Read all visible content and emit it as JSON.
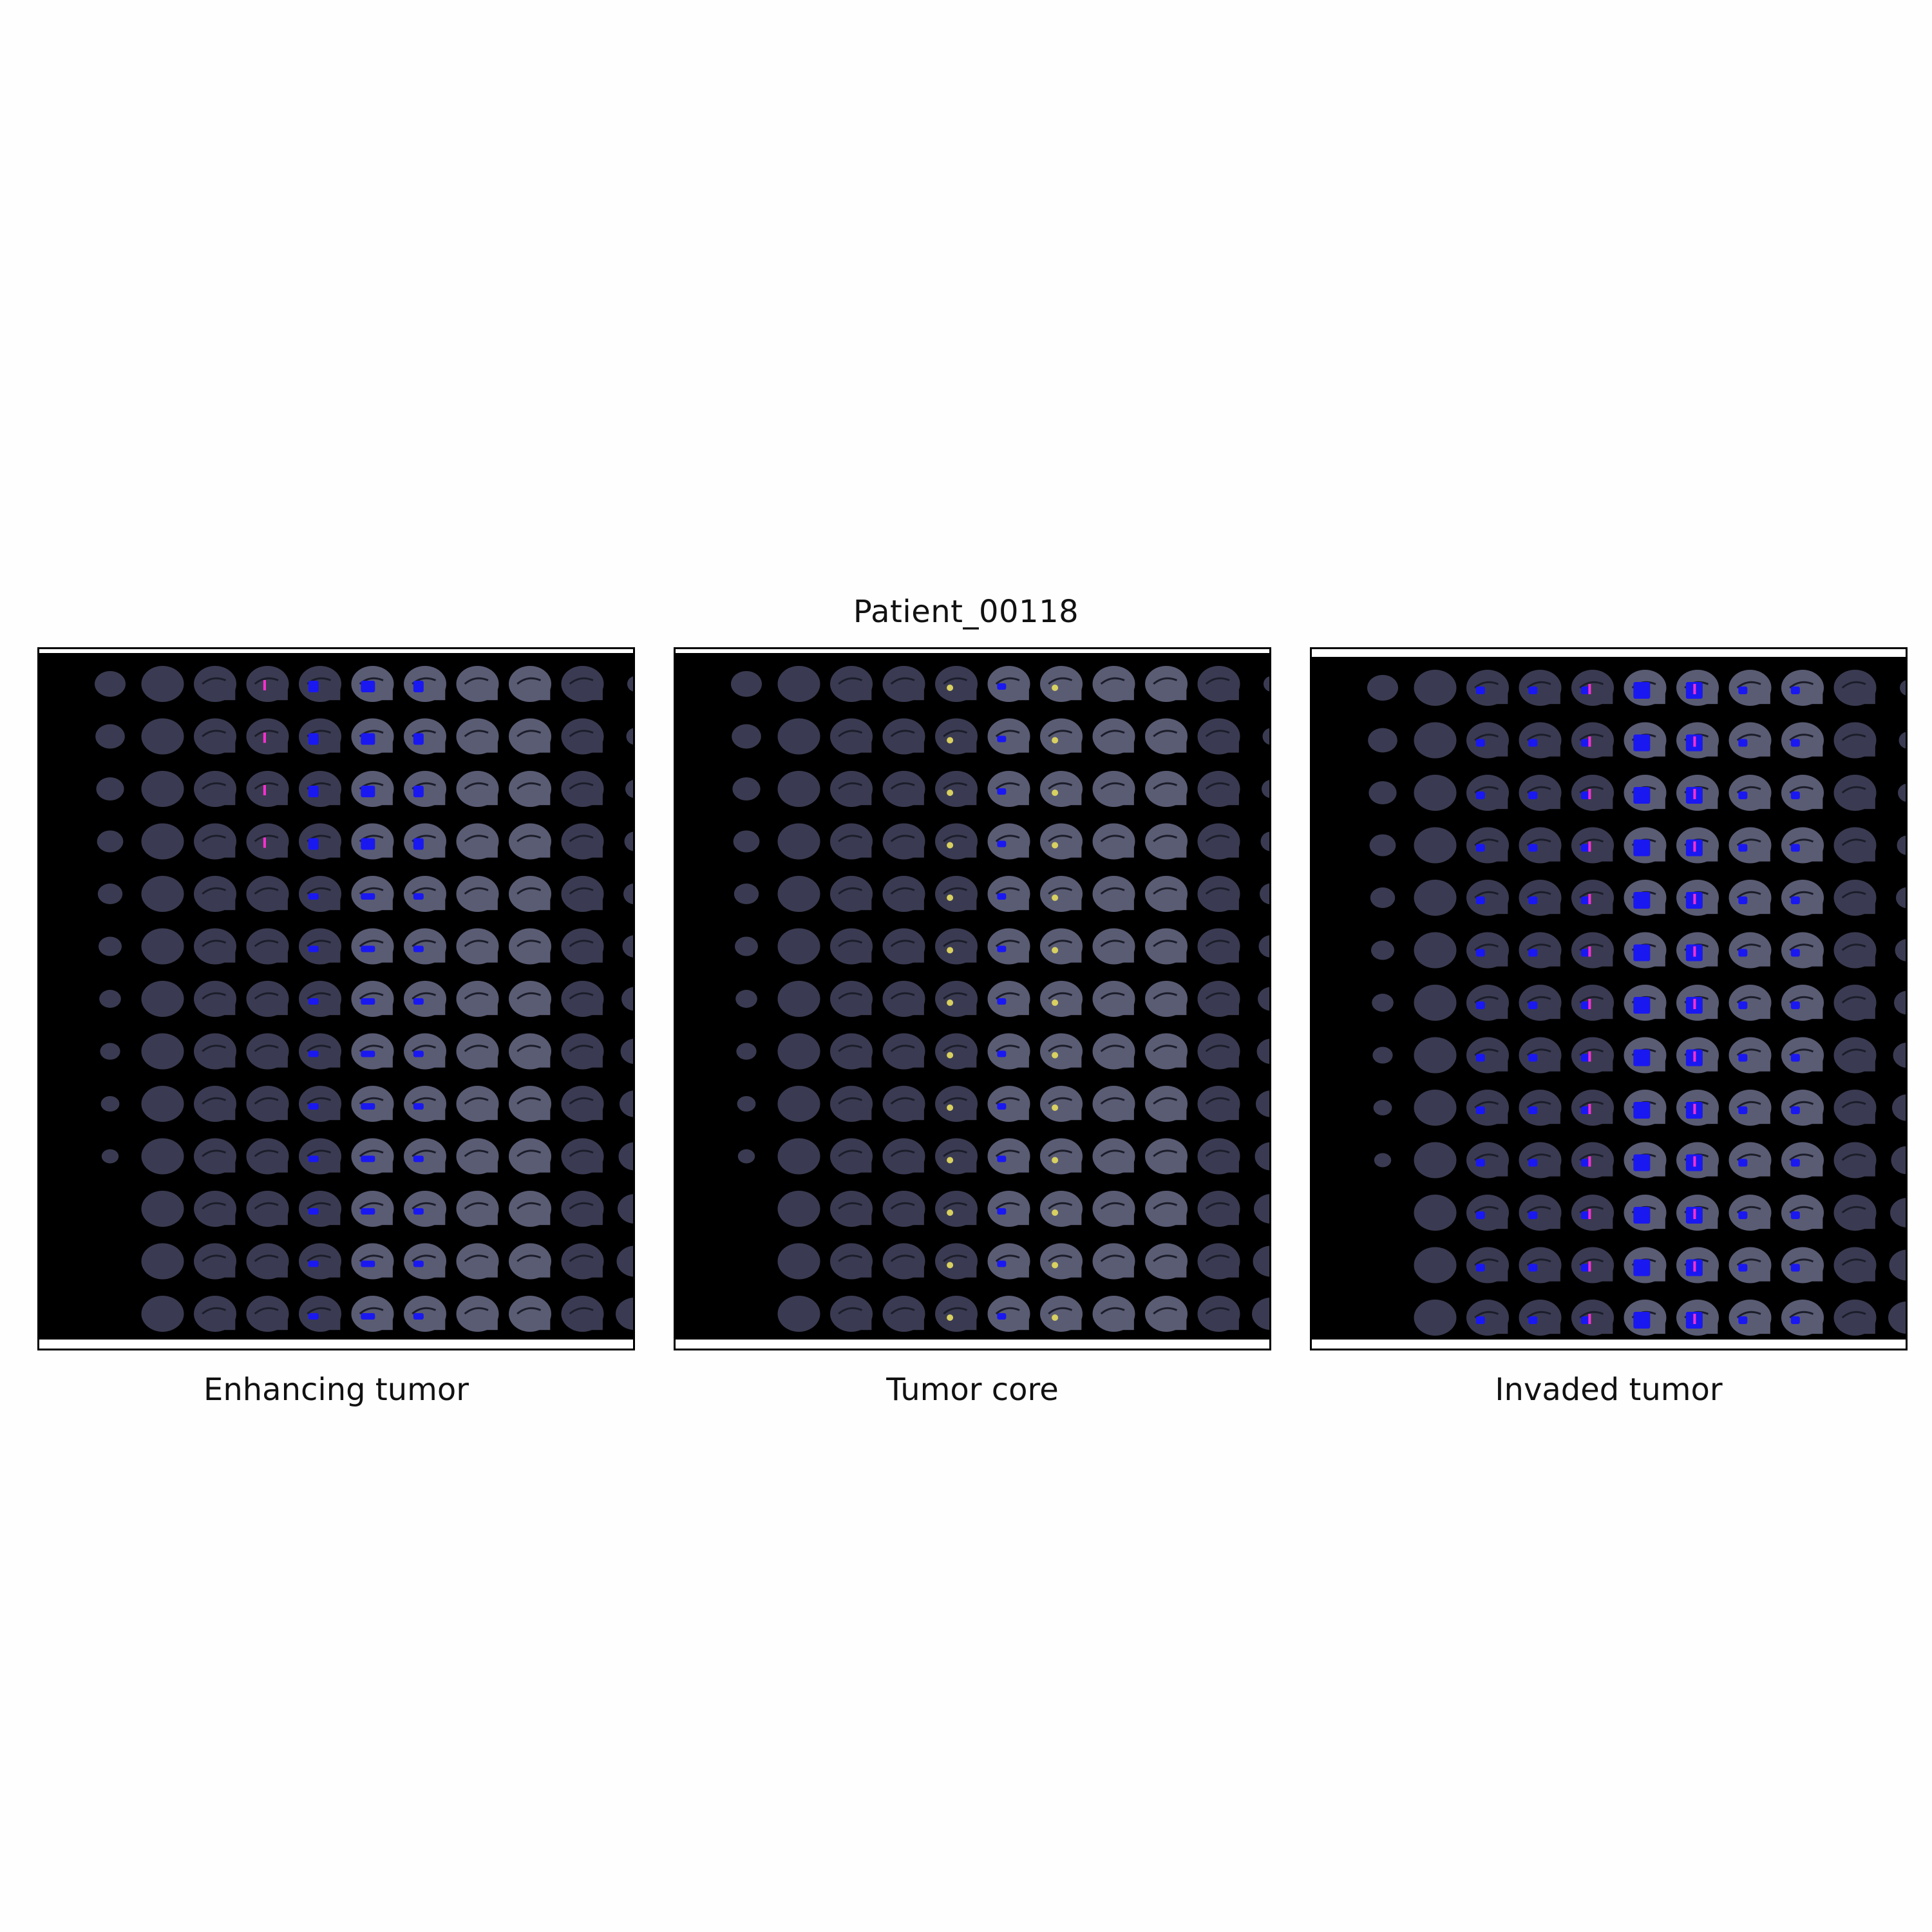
{
  "figure": {
    "title": "Patient_00118"
  },
  "panels": [
    {
      "id": "enhancing",
      "caption": "Enhancing tumor",
      "overlay": "enhancing"
    },
    {
      "id": "core",
      "caption": "Tumor core",
      "overlay": "core"
    },
    {
      "id": "invaded",
      "caption": "Invaded tumor",
      "overlay": "invaded"
    }
  ],
  "montage": {
    "rows": 13,
    "cols": 11
  },
  "colors": {
    "background": "#000000",
    "tissue": "#3a3b52",
    "tissue_light": "#5a5c74",
    "overlay_blue": "#1a18f0",
    "overlay_magenta": "#ff2fd0",
    "overlay_yellow": "#d8d060"
  }
}
